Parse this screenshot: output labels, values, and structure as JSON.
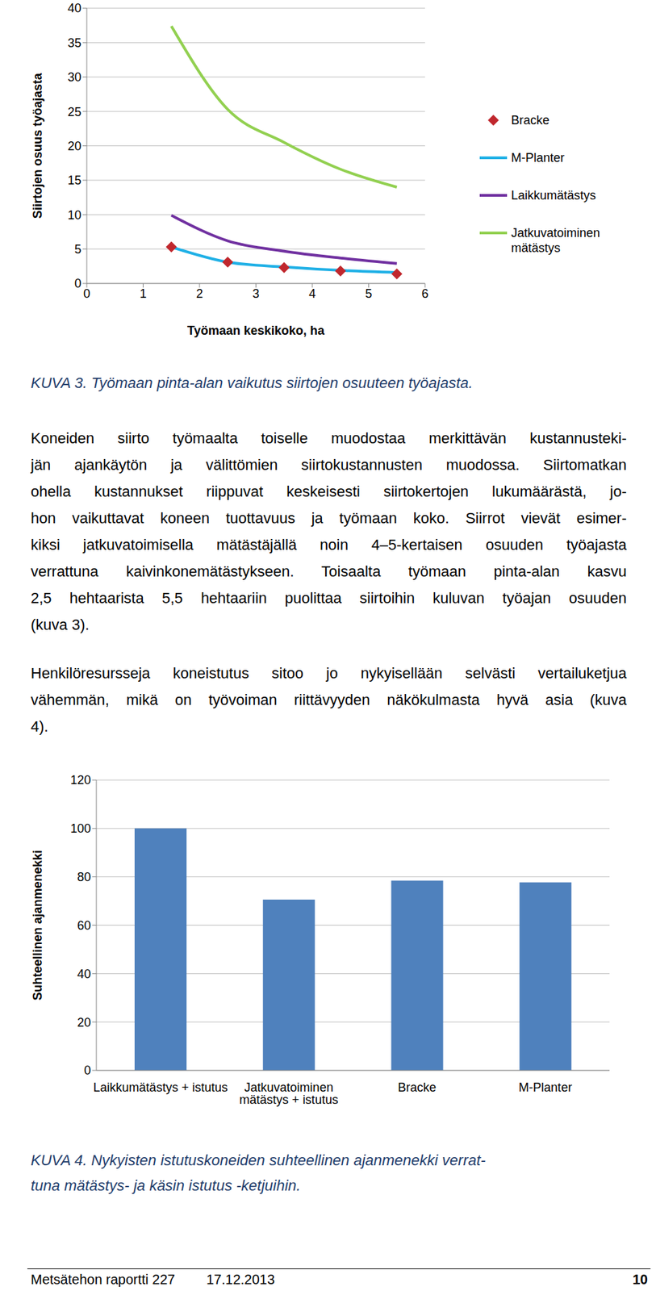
{
  "chart_data": [
    {
      "type": "line",
      "x_label": "Työmaan keskikoko, ha",
      "y_label": "Siirtojen osuus työajasta",
      "xlim": [
        0,
        6
      ],
      "xticks": [
        0,
        1,
        2,
        3,
        4,
        5,
        6
      ],
      "ylim": [
        0,
        40
      ],
      "yticks": [
        0,
        5,
        10,
        15,
        20,
        25,
        30,
        35,
        40
      ],
      "grid": true,
      "legend": "right",
      "x": [
        1.5,
        2.5,
        3.5,
        4.5,
        5.5
      ],
      "series": [
        {
          "name": "Bracke",
          "color": "#c0272d",
          "values": [
            5.3,
            3.1,
            2.3,
            1.8,
            1.4
          ],
          "marker": "diamond",
          "line_style": "none"
        },
        {
          "name": "M-Planter",
          "color": "#1fb0e6",
          "values": [
            5.3,
            3.1,
            2.4,
            1.9,
            1.6
          ],
          "marker": "none",
          "line_style": "solid"
        },
        {
          "name": "Laikkumätästys",
          "color": "#7030a0",
          "values": [
            9.9,
            6.2,
            4.7,
            3.7,
            2.9
          ],
          "marker": "none",
          "line_style": "solid"
        },
        {
          "name": "Jatkuvatoiminen mätästys",
          "color": "#92d050",
          "values": [
            37.4,
            25.3,
            20.5,
            16.6,
            14.0
          ],
          "marker": "none",
          "line_style": "solid"
        }
      ]
    },
    {
      "type": "bar",
      "y_label": "Suhteellinen ajanmenekki",
      "categories": [
        "Laikkumätästys + istutus",
        "Jatkuvatoiminen mätästys + istutus",
        "Bracke",
        "M-Planter"
      ],
      "values": [
        100,
        70.6,
        78.4,
        77.7
      ],
      "color": "#4f81bd",
      "ylim": [
        0,
        120
      ],
      "yticks": [
        0,
        20,
        40,
        60,
        80,
        100,
        120
      ],
      "grid": true
    }
  ],
  "captions": [
    [
      "KUVA 3. Työmaan pinta-alan vaikutus siirtojen osuuteen työajasta."
    ],
    [
      "KUVA 4. Nykyisten istutuskoneiden suhteellinen ajanmenekki verrat-",
      "tuna mätästys- ja käsin istutus -ketjuihin."
    ]
  ],
  "paragraphs": [
    [
      "Koneiden siirto työmaalta toiselle muodostaa merkittävän kustannusteki-",
      "jän ajankäytön ja välittömien siirtokustannusten muodossa. Siirtomatkan",
      "ohella kustannukset riippuvat keskeisesti siirtokertojen lukumäärästä, jo-",
      "hon vaikuttavat koneen tuottavuus ja työmaan koko. Siirrot vievät esimer-",
      "kiksi jatkuvatoimisella mätästäjällä noin 4–5-kertaisen osuuden työajasta",
      "verrattuna kaivinkonemätästykseen. Toisaalta työmaan pinta-alan kasvu",
      "2,5 hehtaarista 5,5 hehtaariin puolittaa siirtoihin kuluvan työajan osuuden",
      "(kuva 3)."
    ],
    [
      "Henkilöresursseja koneistutus sitoo jo nykyisellään selvästi vertailuketjua",
      "vähemmän, mikä on työvoiman riittävyyden näkökulmasta hyvä asia (kuva",
      "4)."
    ]
  ],
  "footer": {
    "report": "Metsätehon raportti 227",
    "date": "17.12.2013",
    "page": "10"
  }
}
